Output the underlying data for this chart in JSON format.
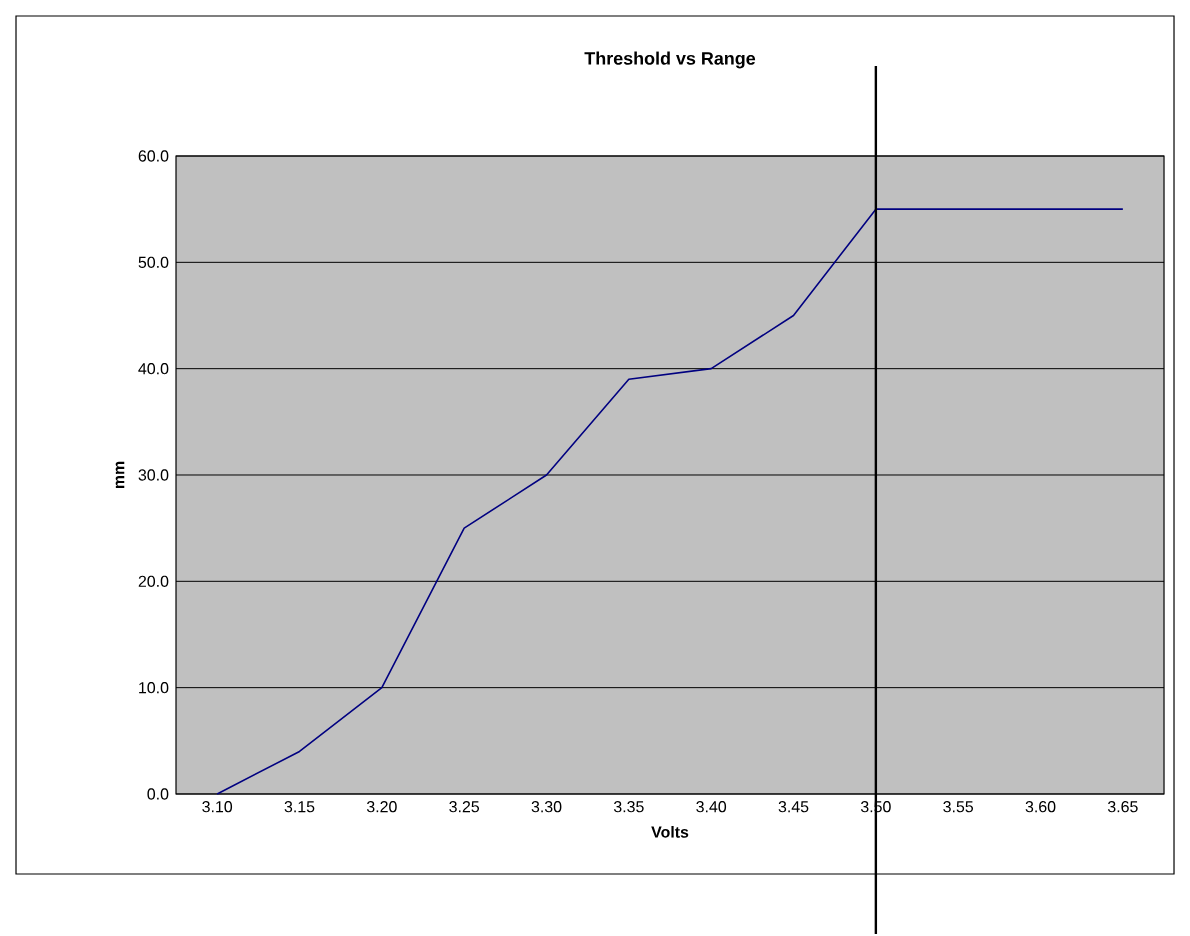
{
  "chart_data": {
    "type": "line",
    "title": "Threshold vs Range",
    "xlabel": "Volts",
    "ylabel": "mm",
    "categories": [
      "3.10",
      "3.15",
      "3.20",
      "3.25",
      "3.30",
      "3.35",
      "3.40",
      "3.45",
      "3.50",
      "3.55",
      "3.60",
      "3.65"
    ],
    "series": [
      {
        "color": "#000080",
        "values": [
          0,
          4,
          10,
          25,
          30,
          39,
          40,
          45,
          55,
          55,
          55,
          55
        ]
      }
    ],
    "ylim": [
      0,
      60
    ],
    "yticks": [
      {
        "value": 0,
        "label": "0.0"
      },
      {
        "value": 10,
        "label": "10.0"
      },
      {
        "value": 20,
        "label": "20.0"
      },
      {
        "value": 30,
        "label": "30.0"
      },
      {
        "value": 40,
        "label": "40.0"
      },
      {
        "value": 50,
        "label": "50.0"
      },
      {
        "value": 60,
        "label": "60.0"
      }
    ],
    "grid": "y",
    "marker": "none",
    "line_style": "solid",
    "ref_lines": [
      {
        "axis": "x",
        "value": "3.50",
        "color": "#000000"
      }
    ]
  }
}
